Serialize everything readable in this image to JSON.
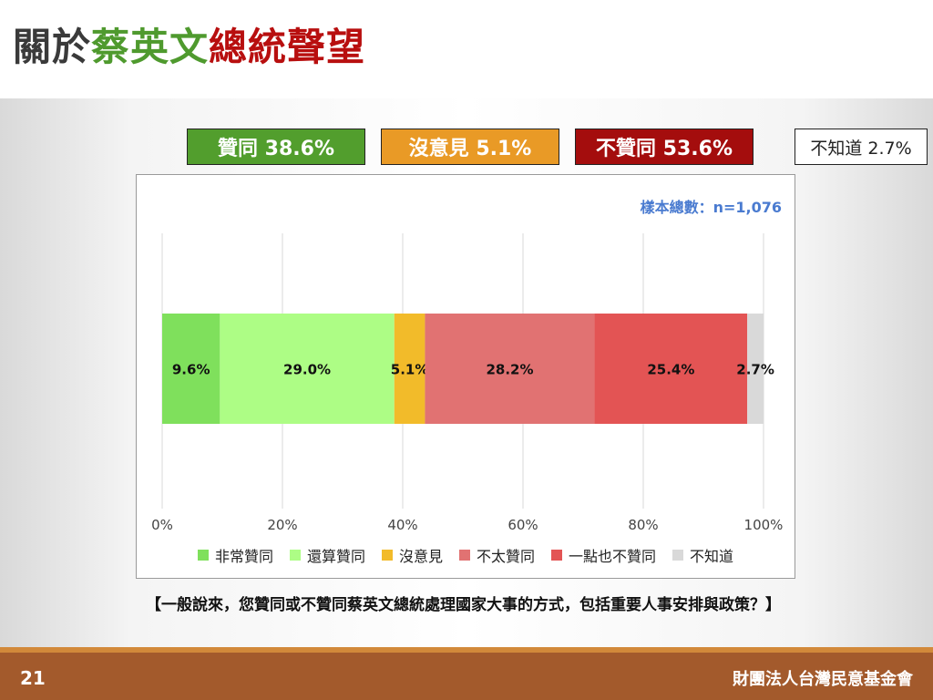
{
  "slide": {
    "title_part1": "關於",
    "title_part2": "蔡英文",
    "title_part3": "總統聲望",
    "page_number": "21",
    "organization": "財團法人台灣民意基金會"
  },
  "summary": {
    "approve": "贊同 38.6%",
    "neutral": "沒意見 5.1%",
    "disapprove": "不贊同 53.6%",
    "unknown": "不知道 2.7%"
  },
  "sample_size": "樣本總數：n=1,076",
  "question": "【一般說來，您贊同或不贊同蔡英文總統處理國家大事的方式，包括重要人事安排與政策？】",
  "chart_data": {
    "type": "bar",
    "orientation": "horizontal",
    "stacked": true,
    "x_ticks": [
      "0%",
      "20%",
      "40%",
      "60%",
      "80%",
      "100%"
    ],
    "xlim": [
      0,
      100
    ],
    "grid": "vertical",
    "legend_position": "bottom",
    "series": [
      {
        "name": "非常贊同",
        "value": 9.6,
        "label": "9.6%",
        "color": "#7fe05c"
      },
      {
        "name": "還算贊同",
        "value": 29.0,
        "label": "29.0%",
        "color": "#adfd85"
      },
      {
        "name": "沒意見",
        "value": 5.1,
        "label": "5.1%",
        "color": "#f2bb2a"
      },
      {
        "name": "不太贊同",
        "value": 28.2,
        "label": "28.2%",
        "color": "#e17272"
      },
      {
        "name": "一點也不贊同",
        "value": 25.4,
        "label": "25.4%",
        "color": "#e35454"
      },
      {
        "name": "不知道",
        "value": 2.7,
        "label": "2.7%",
        "color": "#d9d9d9"
      }
    ]
  }
}
